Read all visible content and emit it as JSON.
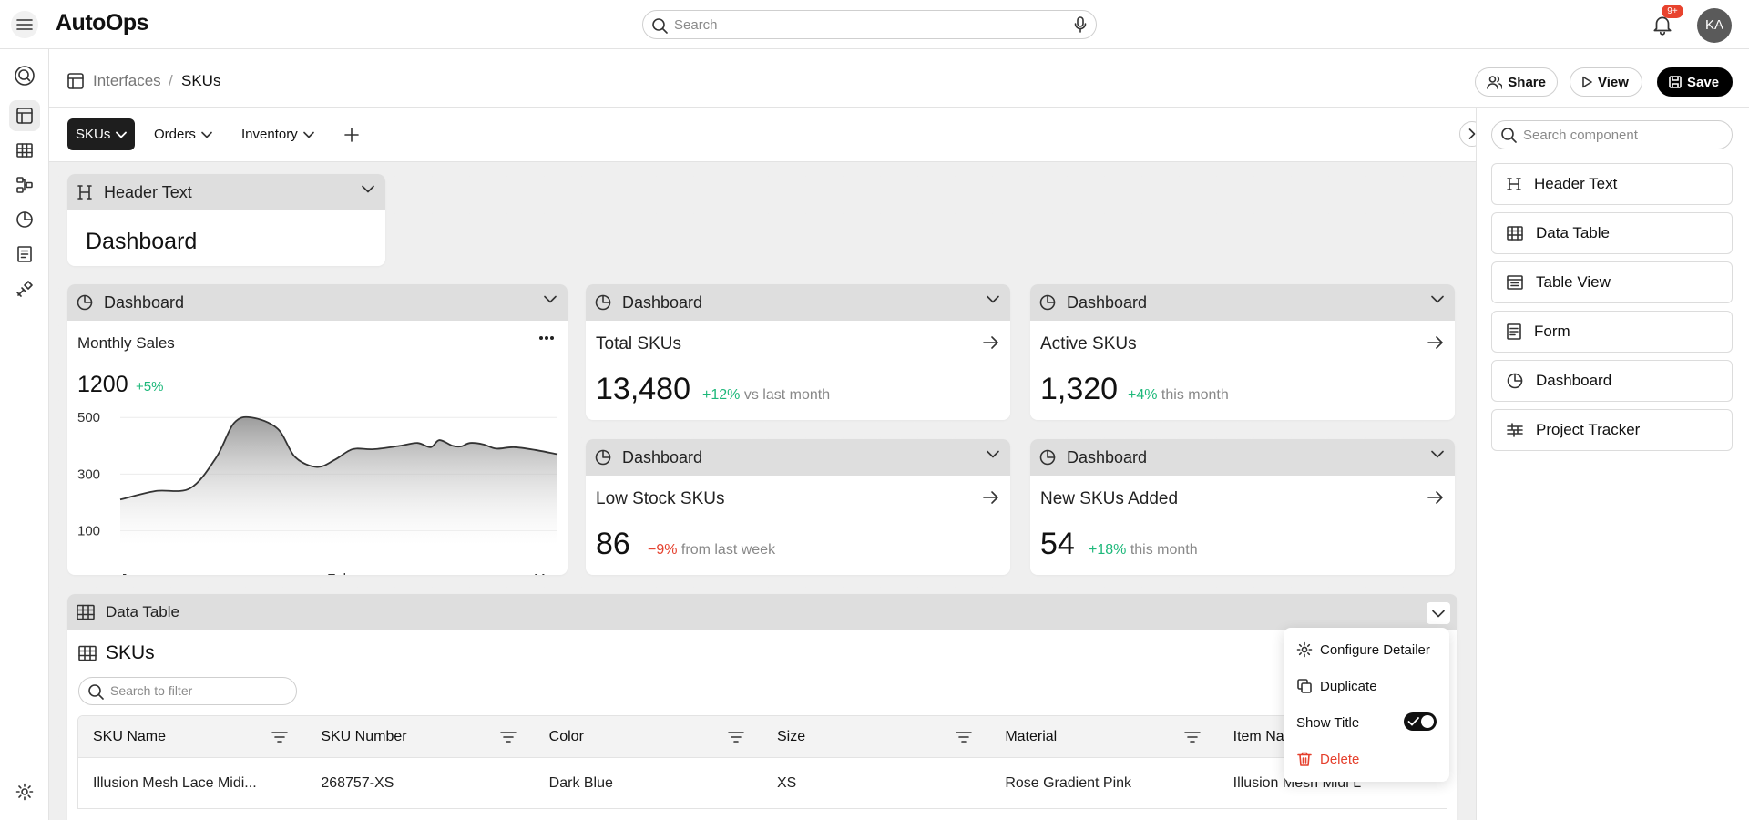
{
  "app": {
    "name": "AutoOps"
  },
  "search": {
    "placeholder": "Search"
  },
  "notifications": {
    "badge": "9+"
  },
  "user": {
    "initials": "KA"
  },
  "breadcrumb": {
    "parent": "Interfaces",
    "separator": "/",
    "current": "SKUs"
  },
  "actions": {
    "share": "Share",
    "view": "View",
    "save": "Save"
  },
  "page_tabs": [
    {
      "label": "SKUs",
      "active": true
    },
    {
      "label": "Orders",
      "active": false
    },
    {
      "label": "Inventory",
      "active": false
    }
  ],
  "header_widget": {
    "title": "Header Text",
    "text": "Dashboard"
  },
  "sales_widget": {
    "header": "Dashboard",
    "title": "Monthly Sales",
    "value": "1200",
    "delta": "+5%"
  },
  "chart_data": {
    "type": "area",
    "title": "Monthly Sales",
    "x_ticks": [
      "Jan",
      "Feb",
      "Mar"
    ],
    "y_ticks": [
      500,
      300,
      100
    ],
    "ylim": [
      50,
      520
    ],
    "grid": true,
    "legend": "none",
    "series": [
      {
        "x": [
          0,
          0.08,
          0.16,
          0.22,
          0.26,
          0.3,
          0.36,
          0.4,
          0.45,
          0.49,
          0.52,
          0.54,
          0.58,
          0.64,
          0.68,
          0.71,
          0.73,
          0.76,
          0.78,
          0.8,
          0.83,
          0.86,
          0.9,
          0.95,
          1.0
        ],
        "values": [
          210,
          240,
          250,
          360,
          480,
          500,
          460,
          360,
          325,
          350,
          380,
          390,
          388,
          400,
          410,
          395,
          420,
          400,
          398,
          410,
          405,
          390,
          395,
          385,
          370
        ]
      }
    ]
  },
  "kpis": [
    {
      "header": "Dashboard",
      "title": "Total SKUs",
      "value": "13,480",
      "delta": "+12%",
      "delta_text": "vs last month",
      "trend": "up"
    },
    {
      "header": "Dashboard",
      "title": "Active SKUs",
      "value": "1,320",
      "delta": "+4%",
      "delta_text": "this month",
      "trend": "up"
    },
    {
      "header": "Dashboard",
      "title": "Low Stock SKUs",
      "value": "86",
      "delta": "−9%",
      "delta_text": "from last week",
      "trend": "down"
    },
    {
      "header": "Dashboard",
      "title": "New SKUs Added",
      "value": "54",
      "delta": "+18%",
      "delta_text": "this month",
      "trend": "up"
    }
  ],
  "data_table": {
    "header": "Data Table",
    "title": "SKUs",
    "filter_placeholder": "Search to filter",
    "columns": [
      "SKU Name",
      "SKU Number",
      "Color",
      "Size",
      "Material",
      "Item Name"
    ],
    "rows": [
      [
        "Illusion Mesh Lace Midi...",
        "268757-XS",
        "Dark Blue",
        "XS",
        "Rose Gradient Pink",
        "Illusion Mesh Midi L"
      ]
    ]
  },
  "context_menu": {
    "configure": "Configure Detailer",
    "duplicate": "Duplicate",
    "show_title": "Show Title",
    "show_title_on": true,
    "delete": "Delete"
  },
  "right_panel": {
    "search_placeholder": "Search component",
    "components": [
      {
        "label": "Header Text",
        "icon": "heading-icon"
      },
      {
        "label": "Data Table",
        "icon": "table-icon"
      },
      {
        "label": "Table View",
        "icon": "table-view-icon"
      },
      {
        "label": "Form",
        "icon": "form-icon"
      },
      {
        "label": "Dashboard",
        "icon": "pie-chart-icon"
      },
      {
        "label": "Project Tracker",
        "icon": "tracker-icon"
      }
    ]
  },
  "colors": {
    "positive": "#1db87a",
    "negative": "#e5402d",
    "primary": "#000000",
    "header_bg": "#dedede"
  }
}
